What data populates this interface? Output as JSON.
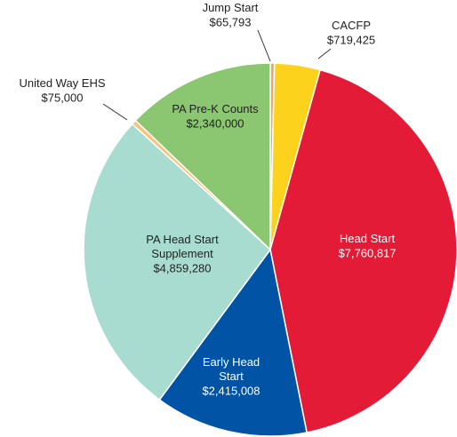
{
  "chart_data": {
    "type": "pie",
    "categories": [
      "Jump Start",
      "CACFP",
      "Head Start",
      "Early Head Start",
      "PA Head Start Supplement",
      "United Way EHS",
      "PA Pre-K Counts"
    ],
    "values": [
      65793,
      719425,
      7760817,
      2415008,
      4859280,
      75000,
      2340000
    ],
    "value_labels": [
      "$65,793",
      "$719,425",
      "$7,760,817",
      "$2,415,008",
      "$4,859,280",
      "$75,000",
      "$2,340,000"
    ],
    "colors": [
      "#f2a36e",
      "#fcd21c",
      "#e31b37",
      "#0053a5",
      "#a9dcd0",
      "#f7c27c",
      "#8bc670"
    ]
  }
}
